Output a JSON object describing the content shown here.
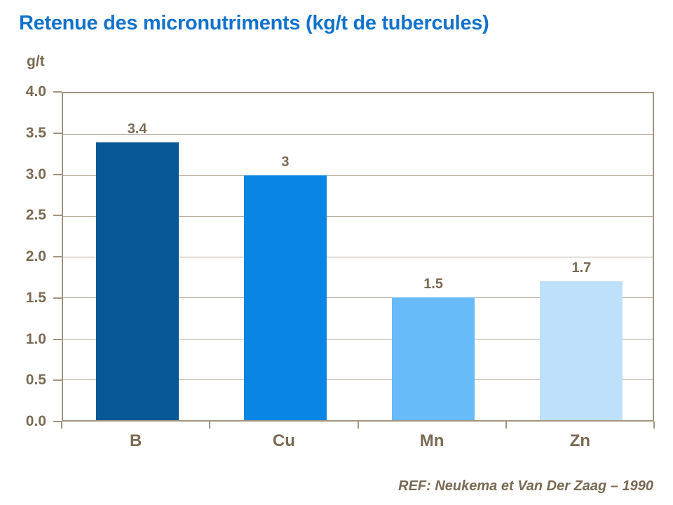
{
  "page": {
    "title": "Retenue des micronutriments (kg/t de tubercules)",
    "y_axis_unit": "g/t",
    "source_ref": "REF: Neukema et Van Der Zaag – 1990"
  },
  "colors": {
    "title_blue": "#1272CB",
    "text_brown": "#7B6A53",
    "axis_tan": "#A2957F",
    "gridline_tan": "#B3A897",
    "background": "#FFFFFF"
  },
  "chart_data": {
    "type": "bar",
    "title": "Retenue des micronutriments (kg/t de tubercules)",
    "xlabel": "",
    "ylabel": "g/t",
    "categories": [
      "B",
      "Cu",
      "Mn",
      "Zn"
    ],
    "values": [
      3.4,
      3,
      1.5,
      1.7
    ],
    "value_labels": [
      "3.4",
      "3",
      "1.5",
      "1.7"
    ],
    "bar_colors": [
      "#055795",
      "#0885E5",
      "#67BBF9",
      "#BFE0FA"
    ],
    "ylim": [
      0,
      4
    ],
    "ytick_step": 0.5,
    "ytick_labels": [
      "0.0",
      "0.5",
      "1.0",
      "1.5",
      "2.0",
      "2.5",
      "3.0",
      "3.5",
      "4.0"
    ],
    "grid": true,
    "legend": false,
    "annotation": "REF: Neukema et Van Der Zaag – 1990"
  }
}
